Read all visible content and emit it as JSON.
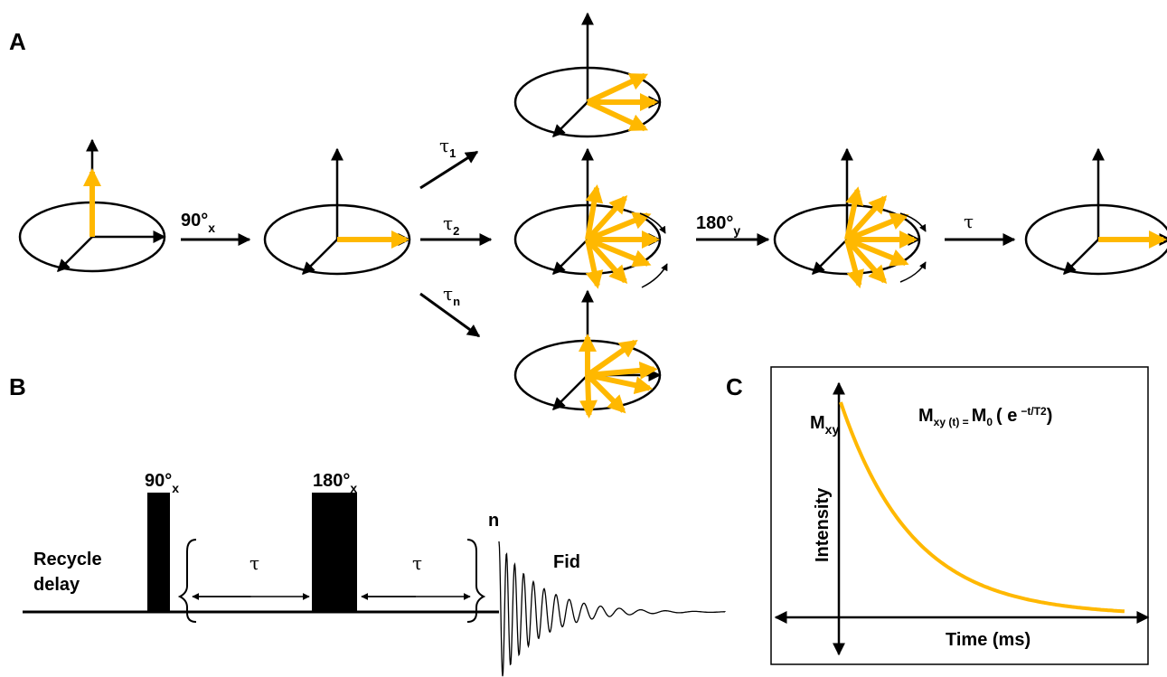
{
  "panels": {
    "a": "A",
    "b": "B",
    "c": "C"
  },
  "panel_a": {
    "pulse1": {
      "text": "90°",
      "sub": "x"
    },
    "tau1": {
      "text": "τ",
      "sub": "1"
    },
    "tau2": {
      "text": "τ",
      "sub": "2"
    },
    "taun": {
      "text": "τ",
      "sub": "n"
    },
    "pulse2": {
      "text": "180°",
      "sub": "y"
    },
    "tau": "τ"
  },
  "panel_b": {
    "recycle": [
      "Recycle",
      "delay"
    ],
    "pulse1": {
      "text": "90°",
      "sub": "x"
    },
    "pulse2": {
      "text": "180°",
      "sub": "x"
    },
    "tau_left": "τ",
    "tau_right": "τ",
    "repeat": "n",
    "fid": "Fid"
  },
  "panel_c": {
    "m_label": {
      "text": "M",
      "sub": "xy"
    },
    "y_label": "Intensity",
    "x_label": "Time (ms)",
    "equation": [
      "M",
      "xy (t) =",
      "M",
      "0",
      "( e",
      "−t/T2",
      ")"
    ]
  }
}
